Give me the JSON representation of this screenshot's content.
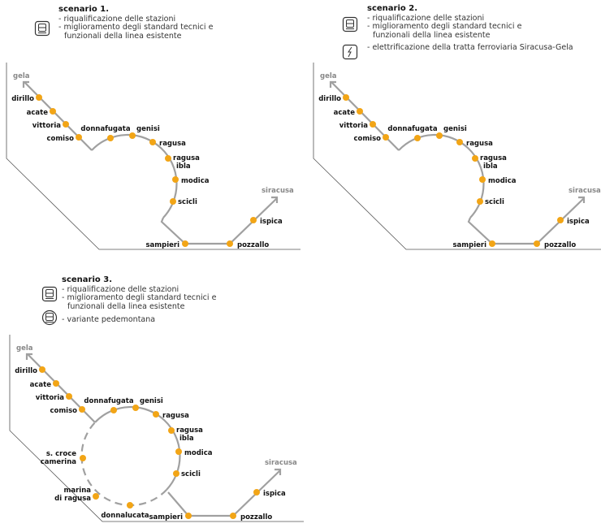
{
  "colors": {
    "station": "#f2a516",
    "line": "#a0a0a0",
    "frame": "#555555"
  },
  "scenarios": [
    {
      "title": "scenario 1.",
      "items": [
        "- riqualificazione delle stazioni",
        "- miglioramento degli standard tecnici e",
        "funzionali della linea esistente"
      ],
      "icons": [
        "train-station-icon"
      ]
    },
    {
      "title": "scenario 2.",
      "items": [
        "- riqualificazione delle stazioni",
        "- miglioramento degli standard tecnici e",
        "funzionali della linea esistente",
        "- elettrificazione della tratta ferroviaria Siracusa-Gela"
      ],
      "icons": [
        "train-station-icon",
        "lightning-icon"
      ]
    },
    {
      "title": "scenario 3.",
      "items": [
        "- riqualificazione delle stazioni",
        "- miglioramento degli standard tecnici e",
        "funzionali della linea esistente",
        "- variante pedemontana"
      ],
      "icons": [
        "train-station-icon",
        "train-circle-icon"
      ]
    }
  ],
  "termini": {
    "west": "gela",
    "east": "siracusa"
  },
  "stations": [
    "dirillo",
    "acate",
    "vittoria",
    "comiso",
    "donnafugata",
    "genisi",
    "ragusa",
    "ragusa ibla",
    "modica",
    "scicli",
    "sampieri",
    "pozzallo",
    "ispica"
  ],
  "variant_stations": [
    "s. croce camerina",
    "marina di ragusa",
    "donnalucata"
  ]
}
